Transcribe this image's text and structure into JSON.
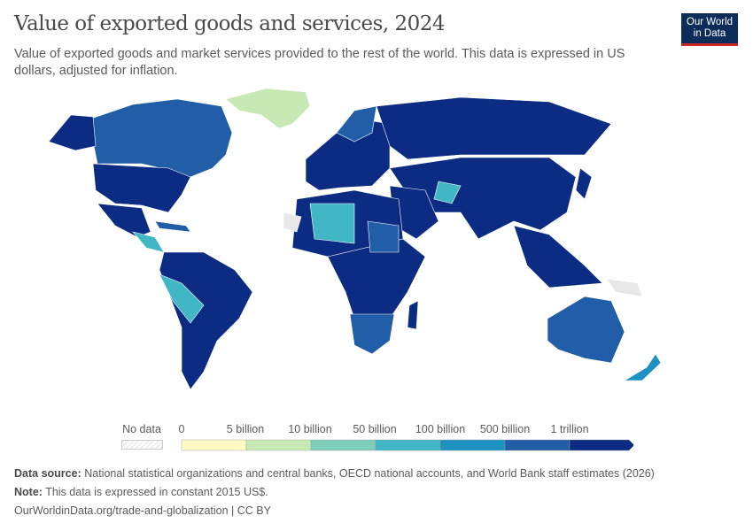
{
  "header": {
    "title": "Value of exported goods and services, 2024",
    "subtitle": "Value of exported goods and market services provided to the rest of the world. This data is expressed in US dollars, adjusted for inflation.",
    "logo": "Our World in Data"
  },
  "legend": {
    "no_data": "No data",
    "bins": [
      "0",
      "5 billion",
      "10 billion",
      "50 billion",
      "100 billion",
      "500 billion",
      "1 trillion"
    ],
    "colors": [
      "#fdfac4",
      "#c7e9b4",
      "#7fcdbb",
      "#41b6c4",
      "#1d91c0",
      "#225ea8",
      "#0c2c84"
    ],
    "no_data_color": "#e8e8e8"
  },
  "footer": {
    "source_label": "Data source:",
    "source": "National statistical organizations and central banks, OECD national accounts, and World Bank staff estimates (2026)",
    "note_label": "Note:",
    "note": "This data is expressed in constant 2015 US$.",
    "url": "OurWorldinData.org/trade-and-globalization | CC BY"
  }
}
